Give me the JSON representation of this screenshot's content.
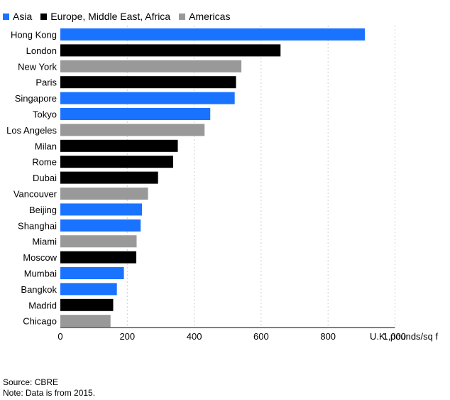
{
  "chart_data": {
    "type": "bar",
    "orientation": "horizontal",
    "title": "",
    "xlabel": "",
    "unit_label": "U.K. pounds/sq f",
    "ylabel": "",
    "xlim": [
      0,
      1000
    ],
    "xticks": [
      0,
      200,
      400,
      600,
      800,
      1000
    ],
    "xtick_labels": [
      "0",
      "200",
      "400",
      "600",
      "800",
      "1,000"
    ],
    "grid": "vertical dashed",
    "legend_position": "top-left",
    "legend": [
      {
        "name": "Asia",
        "color": "#1a73ff"
      },
      {
        "name": "Europe, Middle East, Africa",
        "color": "#000000"
      },
      {
        "name": "Americas",
        "color": "#999999"
      }
    ],
    "categories": [
      "Hong Kong",
      "London",
      "New York",
      "Paris",
      "Singapore",
      "Tokyo",
      "Los Angeles",
      "Milan",
      "Rome",
      "Dubai",
      "Vancouver",
      "Beijing",
      "Shanghai",
      "Miami",
      "Moscow",
      "Mumbai",
      "Bangkok",
      "Madrid",
      "Chicago"
    ],
    "regions": [
      "Asia",
      "Europe, Middle East, Africa",
      "Americas",
      "Europe, Middle East, Africa",
      "Asia",
      "Asia",
      "Americas",
      "Europe, Middle East, Africa",
      "Europe, Middle East, Africa",
      "Europe, Middle East, Africa",
      "Americas",
      "Asia",
      "Asia",
      "Americas",
      "Europe, Middle East, Africa",
      "Asia",
      "Asia",
      "Europe, Middle East, Africa",
      "Americas"
    ],
    "values": [
      910,
      658,
      541,
      525,
      521,
      448,
      431,
      351,
      337,
      292,
      262,
      244,
      240,
      228,
      227,
      190,
      169,
      158,
      150
    ]
  },
  "notes": {
    "source": "Source: CBRE",
    "note": "Note: Data is from 2015."
  }
}
